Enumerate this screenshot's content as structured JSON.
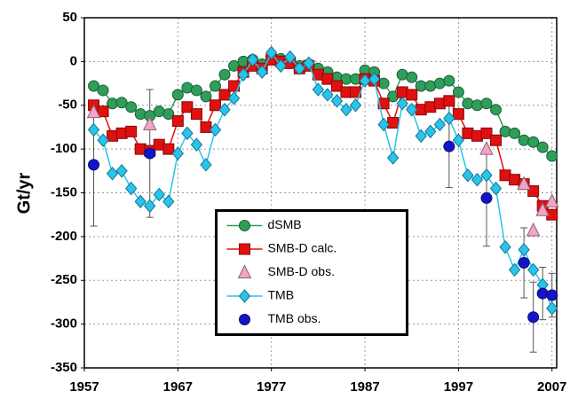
{
  "chart_data": {
    "type": "line",
    "y_label": "Gt/yr",
    "xlim": [
      1957,
      2007.5
    ],
    "xticks": [
      1957,
      1967,
      1977,
      1987,
      1997,
      2007
    ],
    "ylim": [
      -350,
      50
    ],
    "yticks": [
      -350,
      -300,
      -250,
      -200,
      -150,
      -100,
      -50,
      0,
      50
    ],
    "grid": true,
    "legend": "center",
    "series": [
      {
        "name": "dSMB",
        "color": "#2e9e5a",
        "marker": "circle",
        "line": true,
        "x": [
          1958,
          1959,
          1960,
          1961,
          1962,
          1963,
          1964,
          1965,
          1966,
          1967,
          1968,
          1969,
          1970,
          1971,
          1972,
          1973,
          1974,
          1975,
          1976,
          1977,
          1978,
          1979,
          1980,
          1981,
          1982,
          1983,
          1984,
          1985,
          1986,
          1987,
          1988,
          1989,
          1990,
          1991,
          1992,
          1993,
          1994,
          1995,
          1996,
          1997,
          1998,
          1999,
          2000,
          2001,
          2002,
          2003,
          2004,
          2005,
          2006,
          2007
        ],
        "values": [
          -28,
          -33,
          -48,
          -47,
          -52,
          -60,
          -62,
          -57,
          -60,
          -38,
          -30,
          -33,
          -40,
          -28,
          -15,
          -5,
          0,
          2,
          -3,
          5,
          3,
          0,
          -5,
          -3,
          -8,
          -12,
          -18,
          -20,
          -20,
          -10,
          -12,
          -25,
          -40,
          -15,
          -18,
          -28,
          -28,
          -25,
          -22,
          -35,
          -48,
          -50,
          -48,
          -55,
          -80,
          -82,
          -90,
          -92,
          -98,
          -108
        ]
      },
      {
        "name": "SMB-D calc.",
        "color": "#e01010",
        "marker": "square",
        "line": true,
        "x": [
          1958,
          1959,
          1960,
          1961,
          1962,
          1963,
          1964,
          1965,
          1966,
          1967,
          1968,
          1969,
          1970,
          1971,
          1972,
          1973,
          1974,
          1975,
          1976,
          1977,
          1978,
          1979,
          1980,
          1981,
          1982,
          1983,
          1984,
          1985,
          1986,
          1987,
          1988,
          1989,
          1990,
          1991,
          1992,
          1993,
          1994,
          1995,
          1996,
          1997,
          1998,
          1999,
          2000,
          2001,
          2002,
          2003,
          2004,
          2005,
          2006,
          2007
        ],
        "values": [
          -50,
          -57,
          -85,
          -82,
          -80,
          -100,
          -102,
          -95,
          -100,
          -68,
          -52,
          -60,
          -75,
          -50,
          -38,
          -28,
          -12,
          -5,
          -8,
          2,
          0,
          -2,
          -8,
          -5,
          -15,
          -20,
          -28,
          -35,
          -35,
          -20,
          -22,
          -48,
          -70,
          -35,
          -38,
          -55,
          -52,
          -48,
          -45,
          -60,
          -82,
          -85,
          -82,
          -90,
          -130,
          -135,
          -140,
          -148,
          -165,
          -175
        ]
      },
      {
        "name": "SMB-D obs.",
        "color": "#f2a4c6",
        "marker": "triangle",
        "line": false,
        "x": [
          1958,
          1964,
          2000,
          2004,
          2005,
          2006,
          2007
        ],
        "values": [
          -58,
          -72,
          -100,
          -140,
          -193,
          -170,
          -160
        ]
      },
      {
        "name": "TMB",
        "color": "#28c4ec",
        "marker": "diamond",
        "line": true,
        "x": [
          1958,
          1959,
          1960,
          1961,
          1962,
          1963,
          1964,
          1965,
          1966,
          1967,
          1968,
          1969,
          1970,
          1971,
          1972,
          1973,
          1974,
          1975,
          1976,
          1977,
          1978,
          1979,
          1980,
          1981,
          1982,
          1983,
          1984,
          1985,
          1986,
          1987,
          1988,
          1989,
          1990,
          1991,
          1992,
          1993,
          1994,
          1995,
          1996,
          1997,
          1998,
          1999,
          2000,
          2001,
          2002,
          2003,
          2004,
          2005,
          2006,
          2007
        ],
        "values": [
          -78,
          -90,
          -128,
          -125,
          -145,
          -160,
          -165,
          -152,
          -160,
          -105,
          -82,
          -95,
          -118,
          -78,
          -55,
          -42,
          -15,
          2,
          -12,
          10,
          -5,
          5,
          -8,
          -2,
          -32,
          -38,
          -45,
          -55,
          -50,
          -22,
          -20,
          -72,
          -110,
          -48,
          -55,
          -85,
          -80,
          -72,
          -65,
          -90,
          -130,
          -135,
          -130,
          -145,
          -212,
          -238,
          -215,
          -238,
          -255,
          -282
        ]
      },
      {
        "name": "TMB obs.",
        "color": "#1414c8",
        "marker": "circle",
        "line": false,
        "x": [
          1958,
          1964,
          1996,
          2000,
          2004,
          2005,
          2006,
          2007
        ],
        "values": [
          -118,
          -105,
          -97,
          -156,
          -230,
          -292,
          -265,
          -267
        ],
        "errors": [
          70,
          73,
          47,
          55,
          40,
          40,
          30,
          25
        ]
      }
    ]
  }
}
